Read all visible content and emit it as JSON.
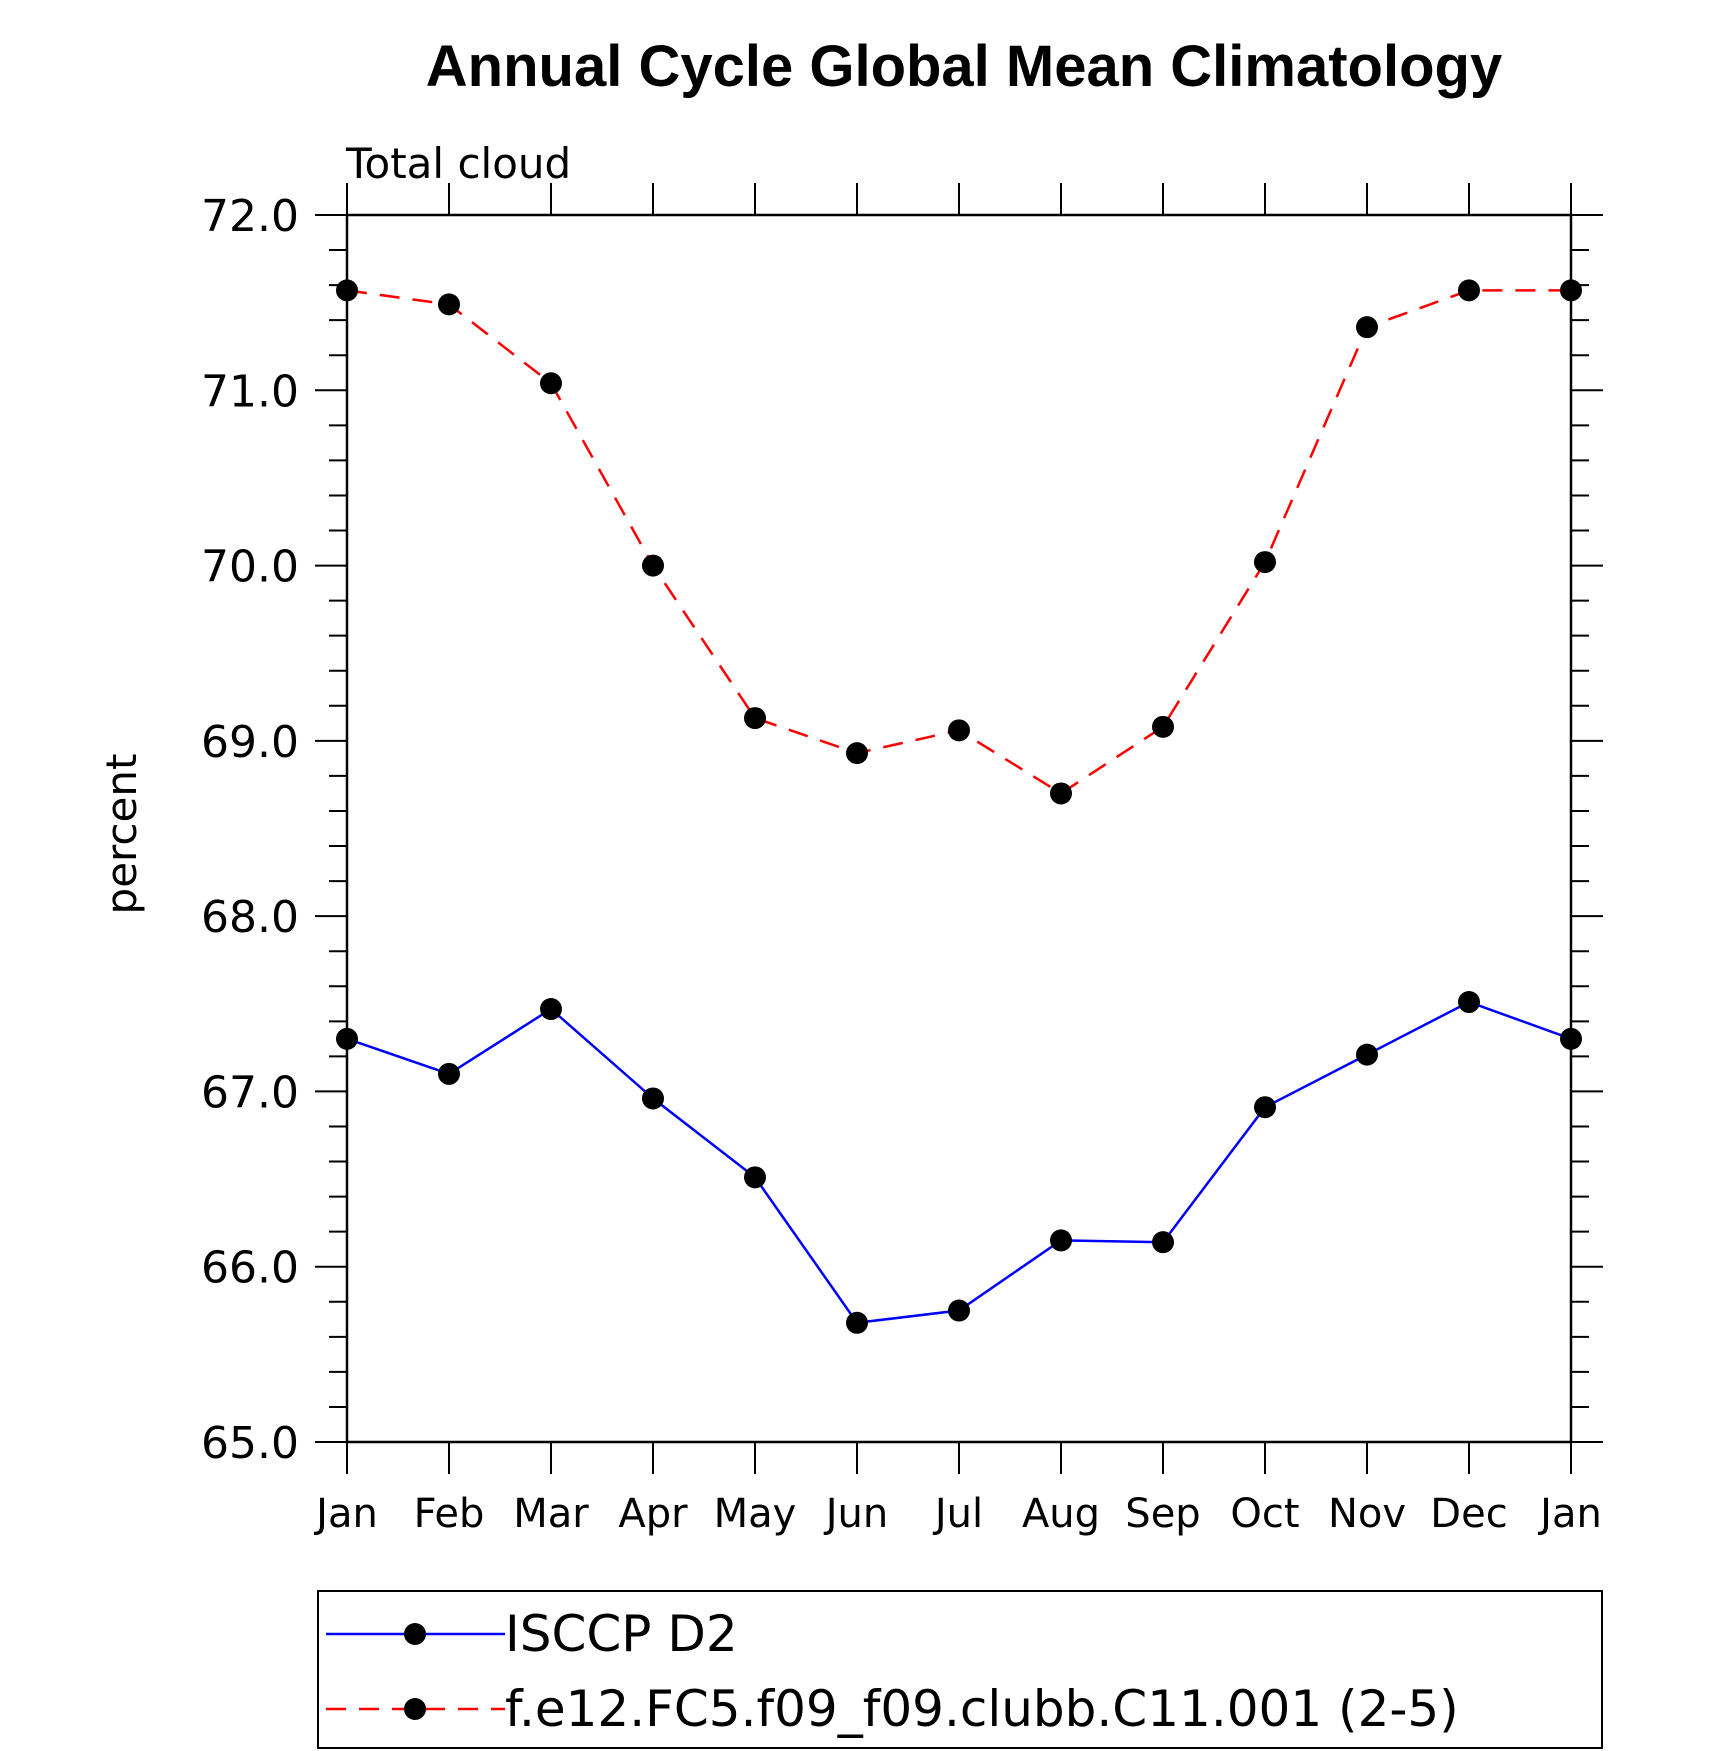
{
  "chart_data": {
    "type": "line",
    "title": "Annual Cycle Global Mean Climatology",
    "subtitle": "Total cloud",
    "xlabel": "",
    "ylabel": "percent",
    "categories": [
      "Jan",
      "Feb",
      "Mar",
      "Apr",
      "May",
      "Jun",
      "Jul",
      "Aug",
      "Sep",
      "Oct",
      "Nov",
      "Dec",
      "Jan"
    ],
    "ylim": [
      65.0,
      72.0
    ],
    "y_ticks": [
      "65.0",
      "66.0",
      "67.0",
      "68.0",
      "69.0",
      "70.0",
      "71.0",
      "72.0"
    ],
    "grid": false,
    "legend_position": "bottom",
    "series": [
      {
        "name": "ISCCP D2",
        "color": "#0000ff",
        "line_style": "solid",
        "marker": "filled-circle",
        "values": [
          67.3,
          67.1,
          67.47,
          66.96,
          66.51,
          65.68,
          65.75,
          66.15,
          66.14,
          66.91,
          67.21,
          67.51,
          67.3
        ]
      },
      {
        "name": "f.e12.FC5.f09_f09.clubb.C11.001 (2-5)",
        "color": "#ff0000",
        "line_style": "dashed",
        "marker": "filled-circle",
        "values": [
          71.57,
          71.49,
          71.04,
          70.0,
          69.13,
          68.93,
          69.06,
          68.7,
          69.08,
          70.02,
          71.36,
          71.57,
          71.57
        ]
      }
    ]
  }
}
